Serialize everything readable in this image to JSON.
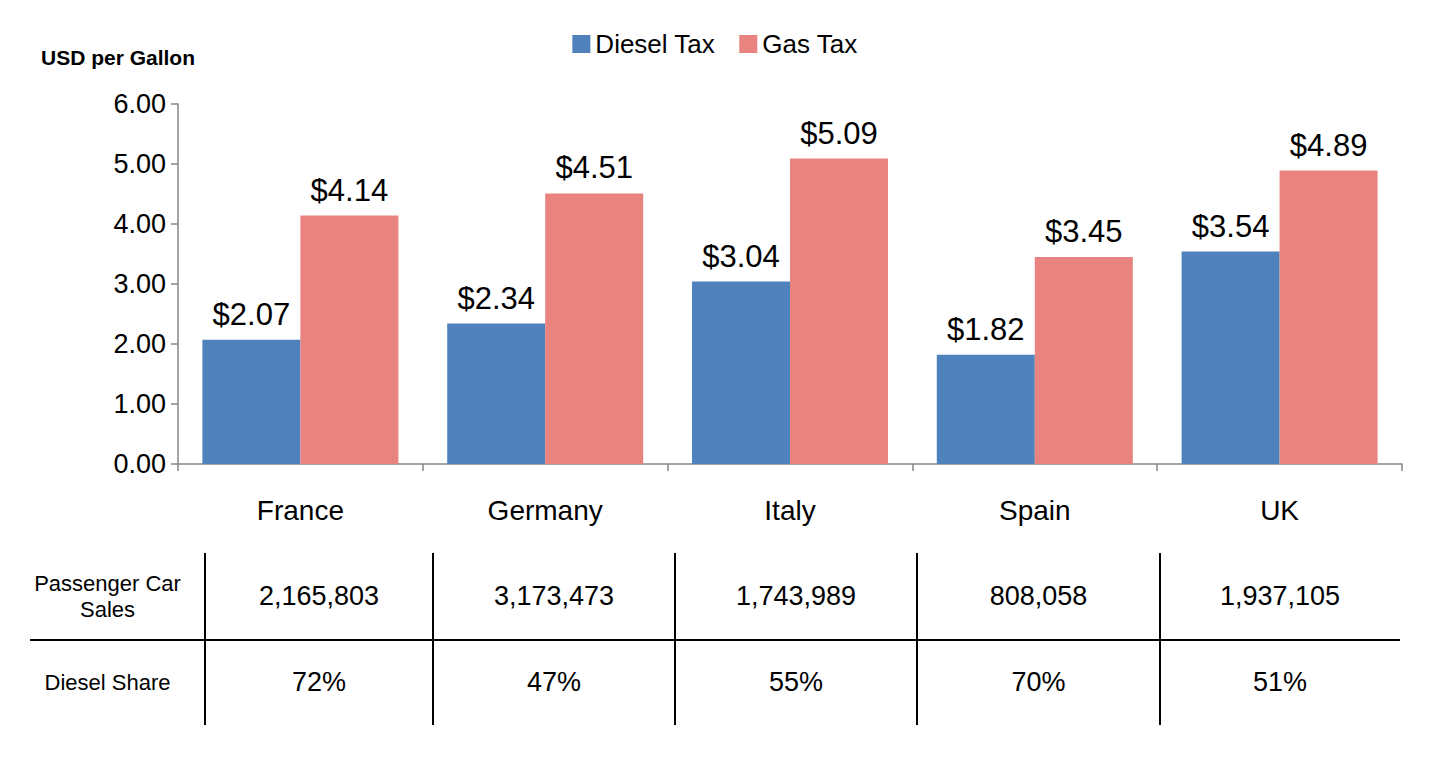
{
  "chart_data": {
    "type": "bar",
    "ylabel": "USD per Gallon",
    "categories": [
      "France",
      "Germany",
      "Italy",
      "Spain",
      "UK"
    ],
    "series": [
      {
        "name": "Diesel Tax",
        "color": "#4f81bd",
        "values": [
          2.07,
          2.34,
          3.04,
          1.82,
          3.54
        ],
        "value_labels": [
          "$2.07",
          "$2.34",
          "$3.04",
          "$1.82",
          "$3.54"
        ]
      },
      {
        "name": "Gas Tax",
        "color": "#e8837f",
        "values": [
          4.14,
          4.51,
          5.09,
          3.45,
          4.89
        ],
        "value_labels": [
          "$4.14",
          "$4.51",
          "$5.09",
          "$3.45",
          "$4.89"
        ]
      }
    ],
    "ylim": [
      0,
      6
    ],
    "yticks": [
      {
        "value": 0,
        "label": "0.00"
      },
      {
        "value": 1,
        "label": "1.00"
      },
      {
        "value": 2,
        "label": "2.00"
      },
      {
        "value": 3,
        "label": "3.00"
      },
      {
        "value": 4,
        "label": "4.00"
      },
      {
        "value": 5,
        "label": "5.00"
      },
      {
        "value": 6,
        "label": "6.00"
      }
    ],
    "grid": false,
    "legend": "top",
    "data_labels": true
  },
  "table": {
    "rows": [
      {
        "header": "Passenger Car Sales",
        "cells": [
          "2,165,803",
          "3,173,473",
          "1,743,989",
          "808,058",
          "1,937,105"
        ]
      },
      {
        "header": "Diesel Share",
        "cells": [
          "72%",
          "47%",
          "55%",
          "70%",
          "51%"
        ]
      }
    ]
  }
}
